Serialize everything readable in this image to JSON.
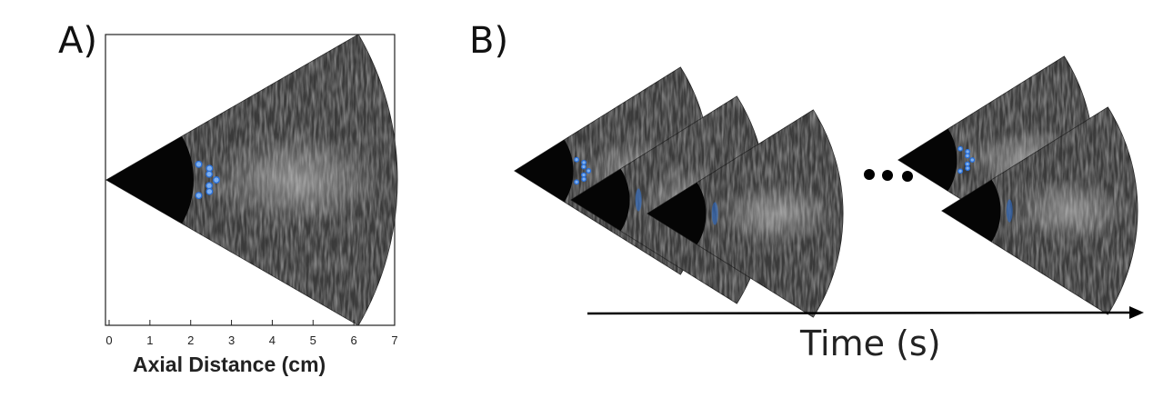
{
  "panels": {
    "a_label": "A)",
    "b_label": "B)"
  },
  "axis": {
    "title": "Axial Distance (cm)",
    "ticks": [
      "0",
      "1",
      "2",
      "3",
      "4",
      "5",
      "6",
      "7"
    ],
    "range": [
      0,
      7
    ]
  },
  "timeline": {
    "label": "Time (s)",
    "ellipsis_dots": 3
  },
  "frames": {
    "sequence_count": 5,
    "contour_color": "#2a6fd6",
    "contour_points": 7
  },
  "colors": {
    "speckle": "#3a3a3a",
    "cone": "#050505",
    "frame": "#222222"
  }
}
